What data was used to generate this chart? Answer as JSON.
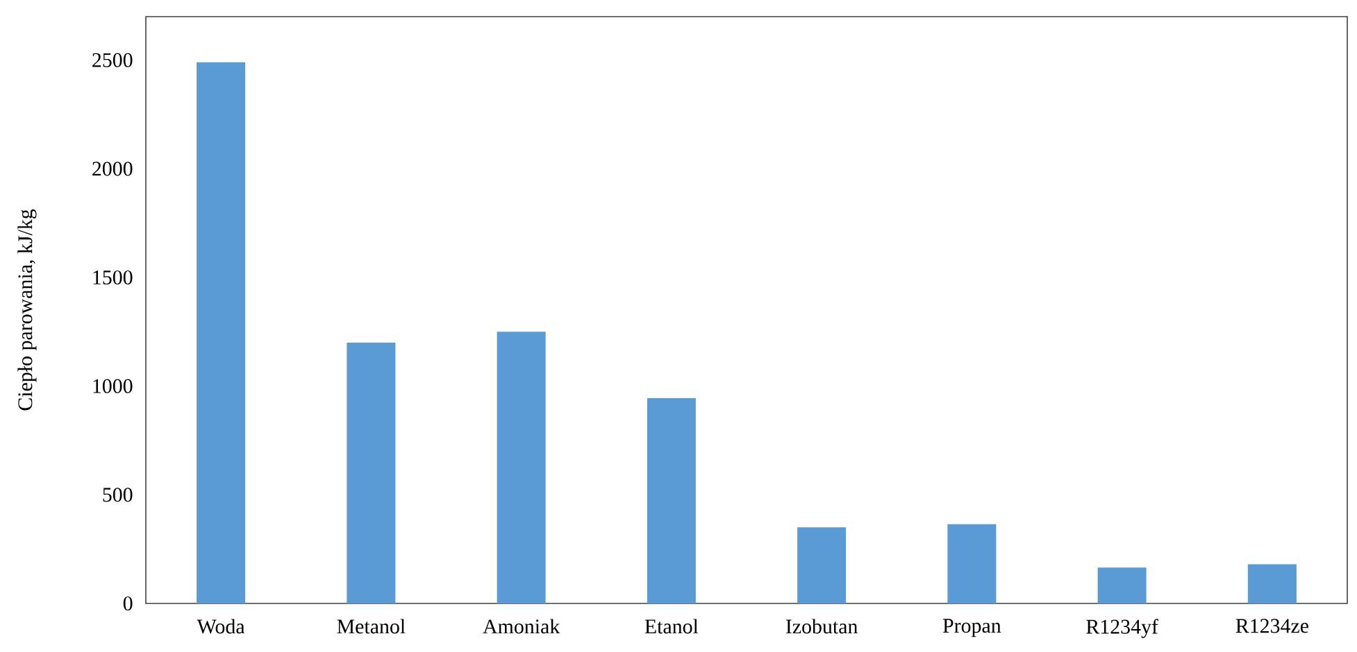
{
  "chart_data": {
    "type": "bar",
    "ylabel": "Ciepło parowania, kJ/kg",
    "categories": [
      "Woda",
      "Metanol",
      "Amoniak",
      "Etanol",
      "Izobutan",
      "Propan",
      "R1234yf",
      "R1234ze"
    ],
    "values": [
      2490,
      1200,
      1250,
      945,
      350,
      365,
      165,
      180
    ],
    "color": "#5b9bd5",
    "ylim": [
      0,
      2700
    ],
    "yticks": [
      0,
      500,
      1000,
      1500,
      2000,
      2500
    ],
    "grid": false
  }
}
